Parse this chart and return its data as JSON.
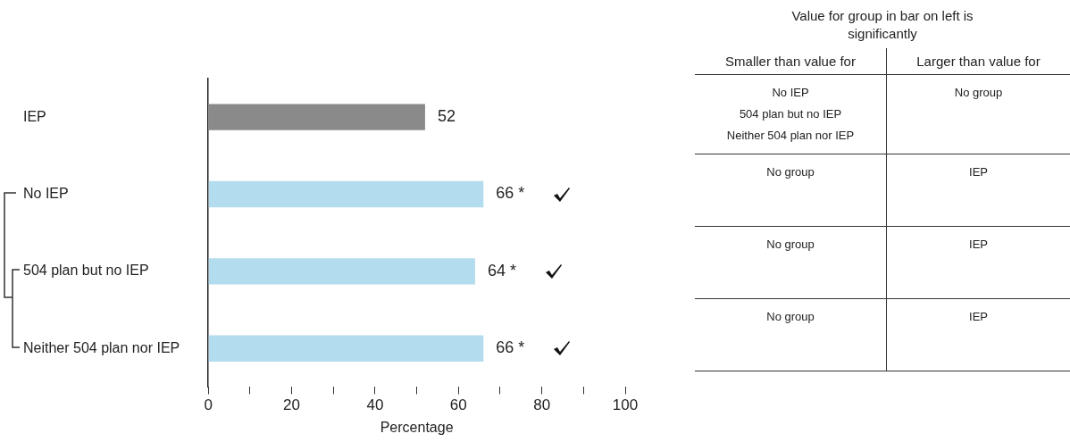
{
  "chart_data": [
    {
      "type": "bar",
      "orientation": "horizontal",
      "xlabel": "Percentage",
      "categories": [
        "IEP",
        "No IEP",
        "504 plan but no IEP",
        "Neither 504 plan nor IEP"
      ],
      "values": [
        52,
        66,
        64,
        66
      ],
      "colors": [
        "#8a8a8a",
        "#b3dcef",
        "#b3dcef",
        "#b3dcef"
      ],
      "value_labels": [
        "52",
        "66 *",
        "64 *",
        "66 *"
      ],
      "xlim": [
        0,
        100
      ],
      "xticks": [
        0,
        {
          "value": 10,
          "label": null
        },
        20,
        {
          "value": 30,
          "label": null
        },
        40,
        {
          "value": 50,
          "label": null
        },
        60,
        {
          "value": 70,
          "label": null
        },
        80,
        {
          "value": 90,
          "label": null
        },
        100
      ],
      "grid": false,
      "legend": false
    },
    {
      "type": "other",
      "title": "Value for group in bar on left is significantly",
      "categories": [
        "Smaller than value for",
        "Larger than value for"
      ],
      "cells": [
        [
          "No IEP\n504 plan but no IEP\nNeither 504 plan nor IEP",
          "No group"
        ],
        [
          "No group",
          "IEP"
        ],
        [
          "No group",
          "IEP"
        ],
        [
          "No group",
          "IEP"
        ]
      ]
    }
  ]
}
